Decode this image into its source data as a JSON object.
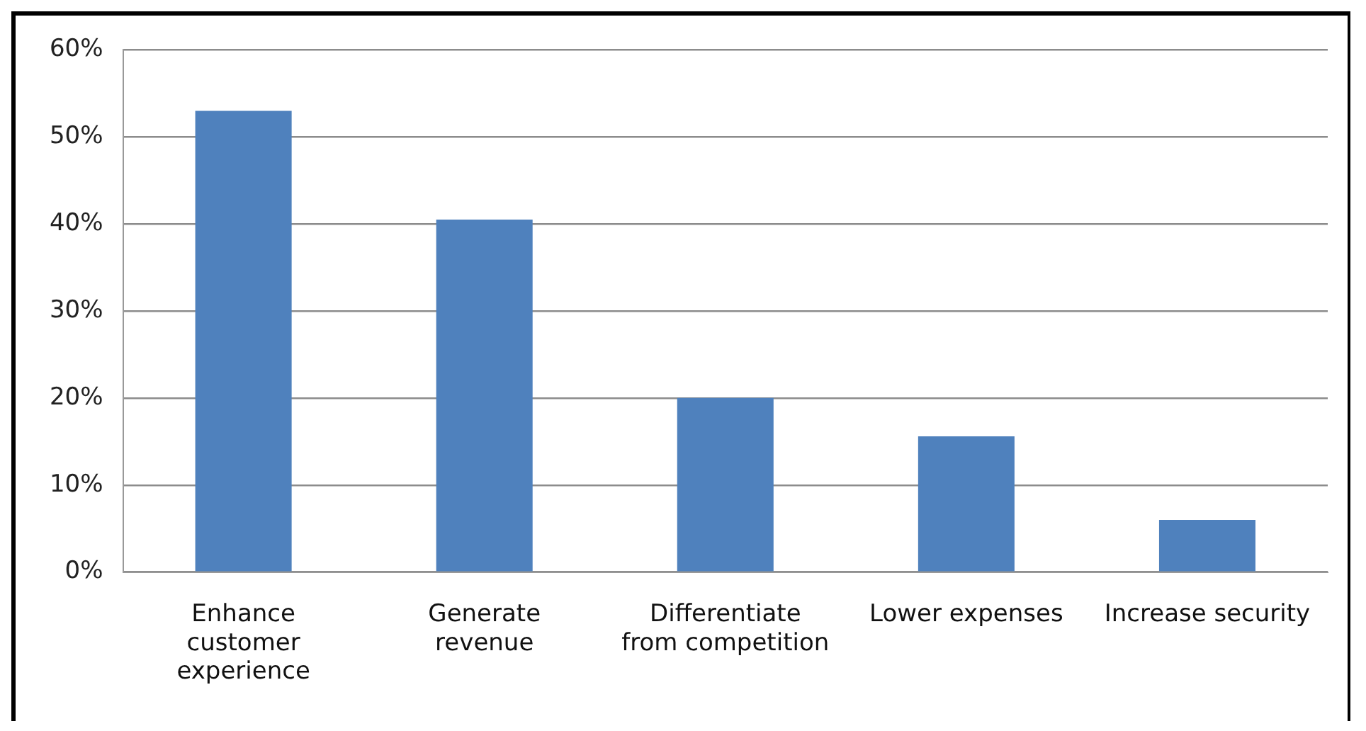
{
  "chart_data": {
    "type": "bar",
    "categories": [
      "Enhance customer experience",
      "Generate revenue",
      "Differentiate from competition",
      "Lower expenses",
      "Increase security"
    ],
    "values": [
      53,
      40.5,
      20,
      15.6,
      6
    ],
    "color": "#4f81bd",
    "ylim": [
      0,
      60
    ],
    "yticks": [
      {
        "value": 0,
        "label": "0%"
      },
      {
        "value": 10,
        "label": "10%"
      },
      {
        "value": 20,
        "label": "20%"
      },
      {
        "value": 30,
        "label": "30%"
      },
      {
        "value": 40,
        "label": "40%"
      },
      {
        "value": 50,
        "label": "50%"
      },
      {
        "value": 60,
        "label": "60%"
      }
    ],
    "grid": "y",
    "legend": false
  }
}
